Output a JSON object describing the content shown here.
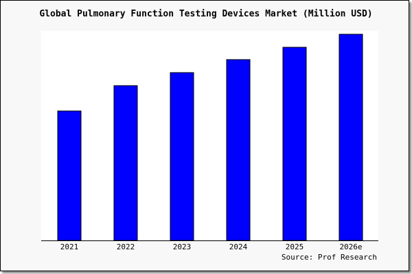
{
  "chart_data": {
    "type": "bar",
    "title": "Global Pulmonary Function Testing Devices Market (Million USD)",
    "categories": [
      "2021",
      "2022",
      "2023",
      "2024",
      "2025",
      "2026e"
    ],
    "values": [
      189,
      226,
      245,
      264,
      282,
      301
    ],
    "xlabel": "",
    "ylabel": "",
    "ylim": [
      0,
      301
    ],
    "grid": false,
    "bar_color": "#0000ff",
    "source": "Source: Prof Research"
  }
}
